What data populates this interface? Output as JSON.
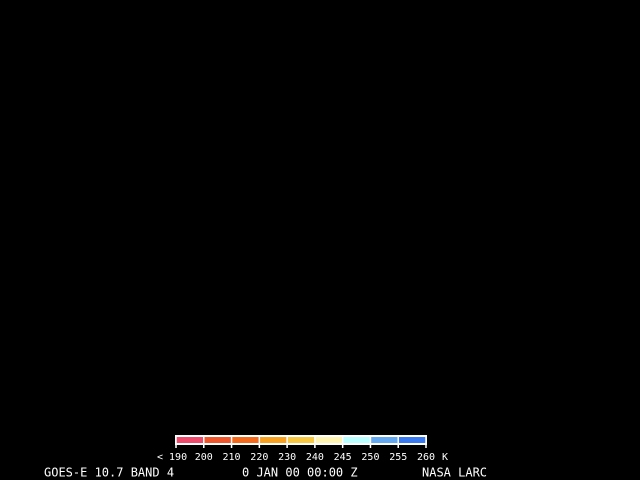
{
  "colorbar": {
    "labels": [
      "< 190",
      "200",
      "210",
      "220",
      "230",
      "240",
      "245",
      "250",
      "255",
      "260"
    ],
    "unit": "K",
    "colors": [
      "#ee4a6c",
      "#f0562c",
      "#f46a1c",
      "#f8a020",
      "#f8c840",
      "#fff4b0",
      "#b8ffff",
      "#64a8f0",
      "#3a7af0"
    ]
  },
  "footer": {
    "satellite": "GOES-E 10.7 BAND 4",
    "time": "0 JAN 00 00:00 Z",
    "source": "NASA LARC"
  }
}
